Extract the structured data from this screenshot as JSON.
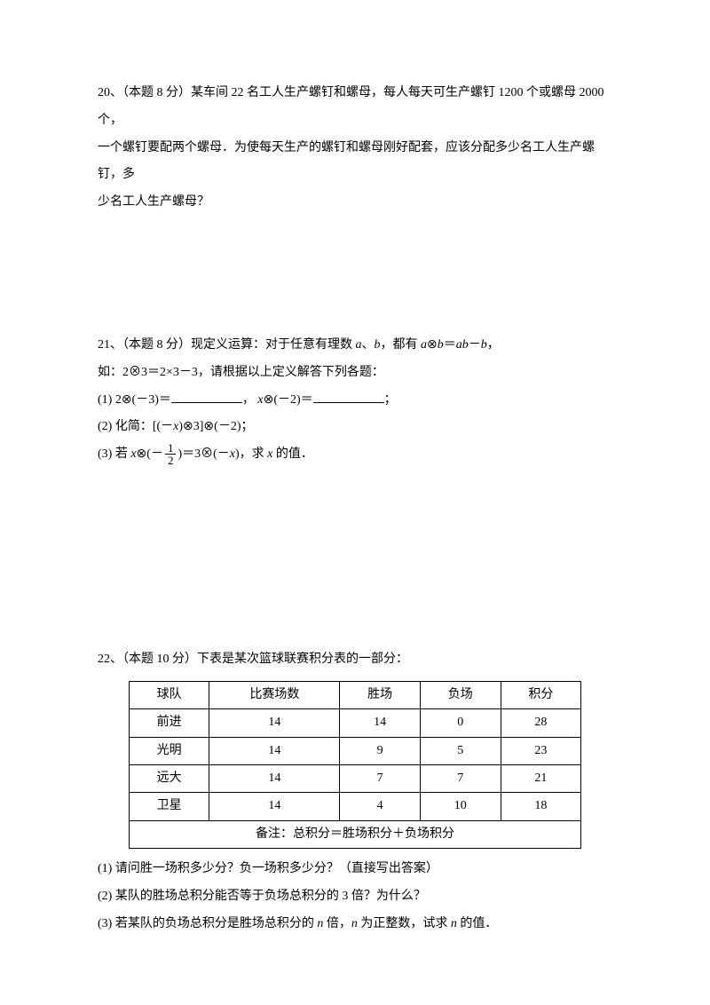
{
  "q20": {
    "number": "20、",
    "points": "（本题 8 分）",
    "line1": "某车间 22 名工人生产螺钉和螺母，每人每天可生产螺钉 1200 个或螺母 2000 个，",
    "line2": "一个螺钉要配两个螺母．为使每天生产的螺钉和螺母刚好配套，应该分配多少名工人生产螺钉，多",
    "line3": "少名工人生产螺母？"
  },
  "q21": {
    "number": "21、",
    "points": "（本题 8 分）",
    "line1_a": "现定义运算：对于任意有理数 ",
    "line1_b": "、",
    "line1_c": "，都有 ",
    "line1_d": "＝",
    "line1_e": "－",
    "line1_f": "，",
    "line2_a": "如：2⊗3＝2×3－3，请根据以上定义解答下列各题：",
    "s1_a": "(1) 2⊗(－3)＝",
    "s1_b": "， ",
    "s1_c": "⊗(－2)＝",
    "s1_d": "；",
    "s2": "(2) 化简：[(－",
    "s2_b": ")⊗3]⊗(－2)；",
    "s3_a": "(3) 若 ",
    "s3_b": "⊗(－",
    "s3_c": ")＝3⊗(－",
    "s3_d": ")，求 ",
    "s3_e": " 的值．",
    "frac_num": "1",
    "frac_den": "2",
    "var_a": "a",
    "var_b": "b",
    "var_ab": "ab",
    "var_x": "x"
  },
  "q22": {
    "number": "22、",
    "points": "（本题 10 分）",
    "intro": "下表是某次篮球联赛积分表的一部分：",
    "headers": [
      "球队",
      "比赛场数",
      "胜场",
      "负场",
      "积分"
    ],
    "rows": [
      [
        "前进",
        "14",
        "14",
        "0",
        "28"
      ],
      [
        "光明",
        "14",
        "9",
        "5",
        "23"
      ],
      [
        "远大",
        "14",
        "7",
        "7",
        "21"
      ],
      [
        "卫星",
        "14",
        "4",
        "10",
        "18"
      ]
    ],
    "note": "备注：总积分＝胜场积分＋负场积分",
    "s1": "(1) 请问胜一场积多少分？负一场积多少分？（直接写出答案）",
    "s2": "(2) 某队的胜场总积分能否等于负场总积分的 3 倍？为什么？",
    "s3_a": "(3) 若某队的负场总积分是胜场总积分的 ",
    "s3_b": " 倍，",
    "s3_c": " 为正整数，试求 ",
    "s3_d": " 的值．",
    "var_n": "n"
  }
}
